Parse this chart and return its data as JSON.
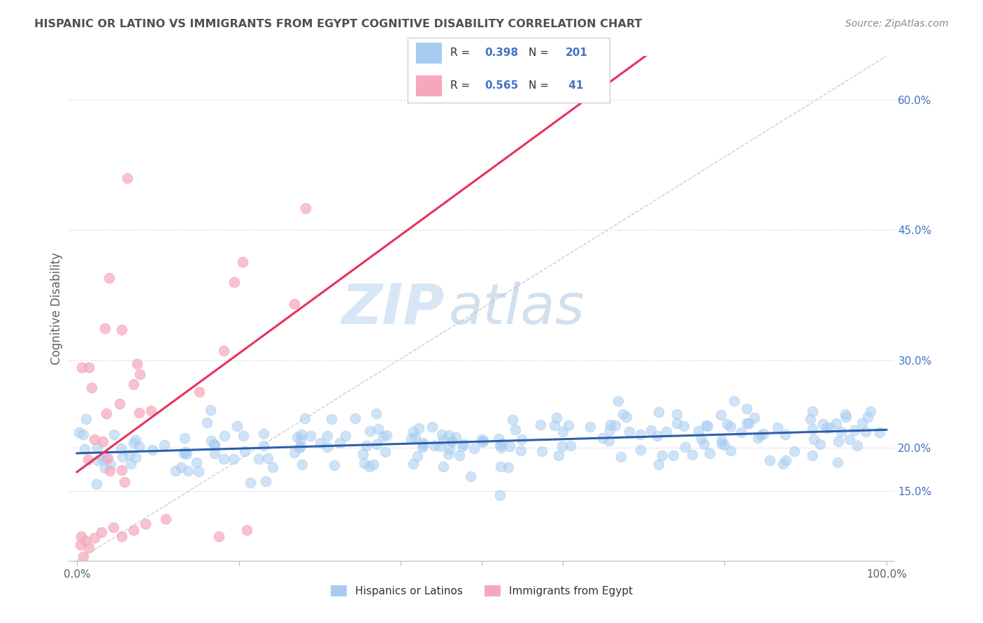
{
  "title": "HISPANIC OR LATINO VS IMMIGRANTS FROM EGYPT COGNITIVE DISABILITY CORRELATION CHART",
  "source": "Source: ZipAtlas.com",
  "ylabel": "Cognitive Disability",
  "ylim": [
    0.07,
    0.65
  ],
  "xlim": [
    -0.01,
    1.01
  ],
  "y_ticks": [
    0.15,
    0.2,
    0.3,
    0.45,
    0.6
  ],
  "y_tick_labels": [
    "15.0%",
    "20.0%",
    "30.0%",
    "45.0%",
    "60.0%"
  ],
  "blue_R": 0.398,
  "blue_N": 201,
  "pink_R": 0.565,
  "pink_N": 41,
  "blue_color": "#A8CCF0",
  "pink_color": "#F5A8BC",
  "blue_line_color": "#2B5FAB",
  "pink_line_color": "#E8305A",
  "diag_color": "#C0C0D0",
  "watermark_zip": "ZIP",
  "watermark_atlas": "atlas",
  "background_color": "#FFFFFF",
  "legend_blue_label": "Hispanics or Latinos",
  "legend_pink_label": "Immigrants from Egypt",
  "title_color": "#505050",
  "axis_label_color": "#606060",
  "right_tick_label_color": "#4472C4",
  "legend_text_color": "#4472C4",
  "legend_label_color": "#333333"
}
